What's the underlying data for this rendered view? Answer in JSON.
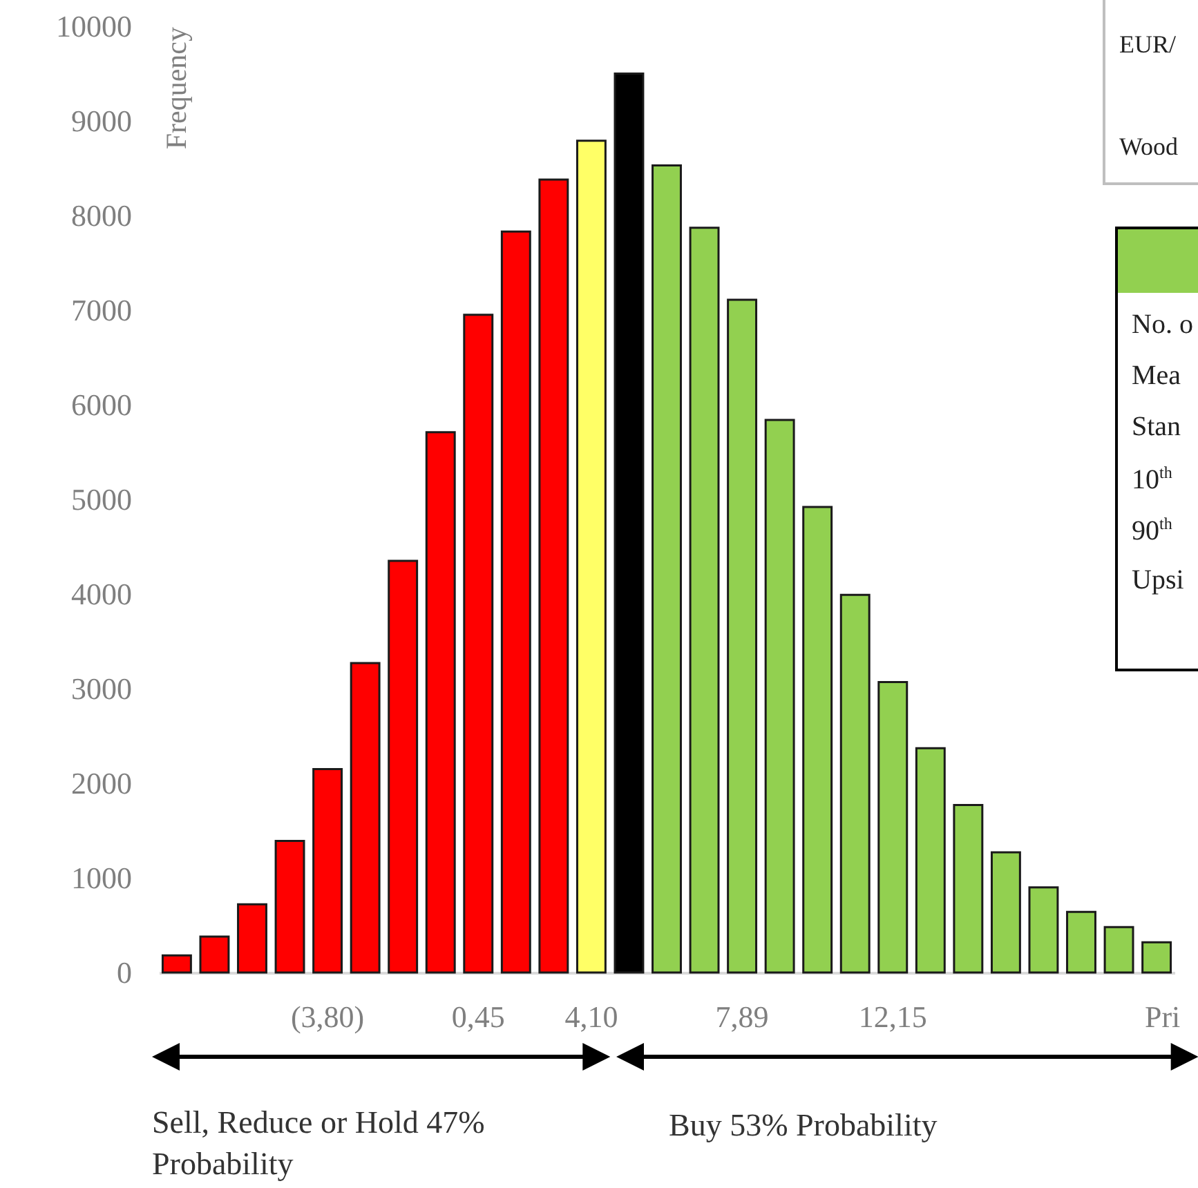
{
  "chart_data": {
    "type": "bar",
    "ylabel": "Frequency",
    "xlabel": "Pri",
    "categories": [
      null,
      null,
      null,
      null,
      "(3,80)",
      null,
      null,
      null,
      "0,45",
      null,
      null,
      "4,10",
      null,
      null,
      null,
      "7,89",
      null,
      null,
      null,
      "12,15",
      null,
      null,
      null,
      null,
      null,
      null,
      null
    ],
    "values": [
      180,
      380,
      720,
      1390,
      2150,
      3270,
      4350,
      5710,
      6950,
      7830,
      8380,
      8790,
      9500,
      8530,
      7870,
      7110,
      5840,
      4920,
      3990,
      3070,
      2370,
      1770,
      1270,
      900,
      640,
      480,
      320
    ],
    "colors": [
      "#ff0000",
      "#ff0000",
      "#ff0000",
      "#ff0000",
      "#ff0000",
      "#ff0000",
      "#ff0000",
      "#ff0000",
      "#ff0000",
      "#ff0000",
      "#ff0000",
      "#ffff66",
      "#000000",
      "#92d050",
      "#92d050",
      "#92d050",
      "#92d050",
      "#92d050",
      "#92d050",
      "#92d050",
      "#92d050",
      "#92d050",
      "#92d050",
      "#92d050",
      "#92d050",
      "#92d050",
      "#92d050"
    ],
    "ylim": [
      0,
      10000
    ],
    "yticks": [
      0,
      1000,
      2000,
      3000,
      4000,
      5000,
      6000,
      7000,
      8000,
      9000,
      10000
    ],
    "grid": false,
    "annotations": [
      "Sell, Reduce or Hold 47% Probability",
      "Buy 53% Probability",
      "EUR/",
      "Wood",
      "No. o",
      "Mea",
      "Stan",
      "10$^{th}$",
      "90$^{th}$",
      "Upsi"
    ]
  }
}
